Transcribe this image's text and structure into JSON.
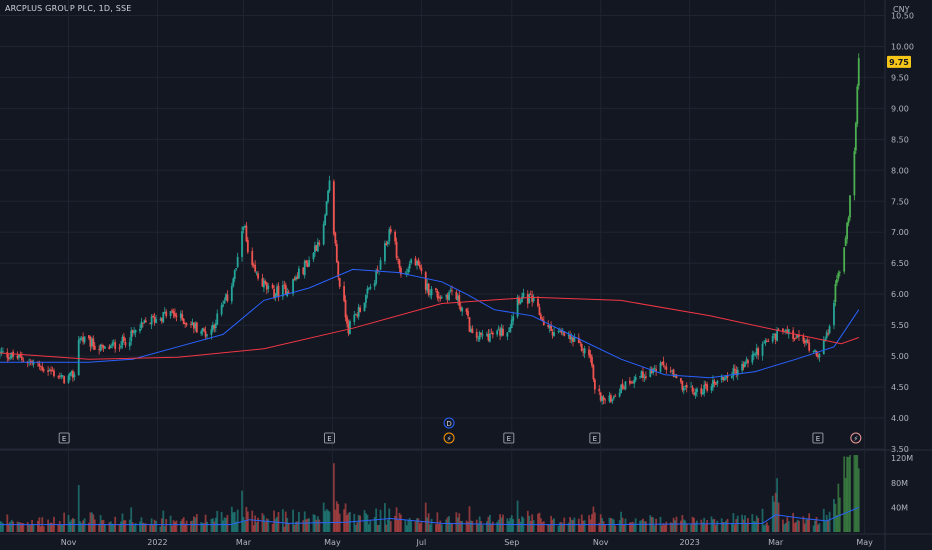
{
  "header": {
    "title": "ARCPLUS GROUP PLC, 1D, SSE"
  },
  "price_axis": {
    "currency": "CNY",
    "last_price": "9.75"
  },
  "colors": {
    "up": "#26a69a",
    "up_bright": "#4caf50",
    "down": "#ef5350",
    "ma_fast": "#2962ff",
    "ma_slow": "#f23645",
    "badge": "#f5c518",
    "grid": "#1f2431",
    "bg": "#131722"
  },
  "events": [
    {
      "type": "earnings",
      "label": "E",
      "date": "2021-10-29"
    },
    {
      "type": "earnings",
      "label": "E",
      "date": "2022-04-29"
    },
    {
      "type": "dividend",
      "label": "D",
      "date": "2022-07-20"
    },
    {
      "type": "split",
      "label": "⚡",
      "date": "2022-07-20"
    },
    {
      "type": "earnings",
      "label": "E",
      "date": "2022-08-30"
    },
    {
      "type": "earnings",
      "label": "E",
      "date": "2022-10-28"
    },
    {
      "type": "earnings",
      "label": "E",
      "date": "2023-03-30"
    },
    {
      "type": "split",
      "label": "⚡",
      "date": "2023-04-25"
    }
  ],
  "chart_data": {
    "type": "candlestick",
    "title": "ARCPLUS GROUP PLC, 1D, SSE",
    "ylabel": "CNY",
    "ylim": [
      3.5,
      10.75
    ],
    "y_ticks": [
      "10.50",
      "10.00",
      "9.50",
      "9.00",
      "8.50",
      "8.00",
      "7.50",
      "7.00",
      "6.50",
      "6.00",
      "5.50",
      "5.00",
      "4.50",
      "4.00",
      "3.50"
    ],
    "x_ticks": [
      {
        "label": "Nov",
        "date": "2021-11-01"
      },
      {
        "label": "2022",
        "date": "2022-01-01"
      },
      {
        "label": "Mar",
        "date": "2022-03-01"
      },
      {
        "label": "May",
        "date": "2022-05-01"
      },
      {
        "label": "Jul",
        "date": "2022-07-01"
      },
      {
        "label": "Sep",
        "date": "2022-09-01"
      },
      {
        "label": "Nov",
        "date": "2022-11-01"
      },
      {
        "label": "2023",
        "date": "2023-01-01"
      },
      {
        "label": "Mar",
        "date": "2023-03-01"
      },
      {
        "label": "May",
        "date": "2023-05-01"
      }
    ],
    "volume_ticks": [
      "120M",
      "80M",
      "40M"
    ],
    "volume_ylim": [
      0,
      130
    ],
    "close_path": [
      [
        "2021-09-15",
        5.05
      ],
      [
        "2021-10-01",
        4.95
      ],
      [
        "2021-10-20",
        4.75
      ],
      [
        "2021-10-29",
        4.62
      ],
      [
        "2021-11-05",
        4.7
      ],
      [
        "2021-11-08",
        5.3
      ],
      [
        "2021-11-25",
        5.1
      ],
      [
        "2021-12-10",
        5.25
      ],
      [
        "2021-12-25",
        5.55
      ],
      [
        "2022-01-10",
        5.7
      ],
      [
        "2022-01-25",
        5.5
      ],
      [
        "2022-02-05",
        5.35
      ],
      [
        "2022-02-18",
        5.95
      ],
      [
        "2022-02-25",
        6.5
      ],
      [
        "2022-03-01",
        7.2
      ],
      [
        "2022-03-05",
        6.45
      ],
      [
        "2022-03-20",
        6.0
      ],
      [
        "2022-04-01",
        6.1
      ],
      [
        "2022-04-15",
        6.55
      ],
      [
        "2022-04-25",
        7.05
      ],
      [
        "2022-04-29",
        7.75
      ],
      [
        "2022-05-05",
        6.3
      ],
      [
        "2022-05-12",
        5.45
      ],
      [
        "2022-05-25",
        6.0
      ],
      [
        "2022-06-03",
        6.45
      ],
      [
        "2022-06-10",
        7.1
      ],
      [
        "2022-06-18",
        6.2
      ],
      [
        "2022-06-25",
        6.6
      ],
      [
        "2022-07-05",
        6.1
      ],
      [
        "2022-07-15",
        5.95
      ],
      [
        "2022-07-22",
        6.05
      ],
      [
        "2022-08-01",
        5.65
      ],
      [
        "2022-08-05",
        5.3
      ],
      [
        "2022-08-20",
        5.35
      ],
      [
        "2022-08-30",
        5.45
      ],
      [
        "2022-09-05",
        5.95
      ],
      [
        "2022-09-15",
        5.9
      ],
      [
        "2022-09-25",
        5.45
      ],
      [
        "2022-10-10",
        5.3
      ],
      [
        "2022-10-25",
        5.0
      ],
      [
        "2022-10-28",
        4.45
      ],
      [
        "2022-11-05",
        4.25
      ],
      [
        "2022-11-20",
        4.6
      ],
      [
        "2022-12-05",
        4.75
      ],
      [
        "2022-12-15",
        4.85
      ],
      [
        "2022-12-25",
        4.55
      ],
      [
        "2023-01-05",
        4.4
      ],
      [
        "2023-01-20",
        4.6
      ],
      [
        "2023-02-05",
        4.8
      ],
      [
        "2023-02-15",
        5.05
      ],
      [
        "2023-02-25",
        5.25
      ],
      [
        "2023-03-05",
        5.4
      ],
      [
        "2023-03-20",
        5.25
      ],
      [
        "2023-03-30",
        5.05
      ],
      [
        "2023-04-05",
        5.3
      ],
      [
        "2023-04-12",
        6.2
      ],
      [
        "2023-04-18",
        6.9
      ],
      [
        "2023-04-22",
        7.8
      ],
      [
        "2023-04-25",
        8.7
      ],
      [
        "2023-04-27",
        9.75
      ]
    ],
    "series": [
      {
        "type": "line",
        "values": [
          [
            "2021-09-15",
            4.9
          ],
          [
            "2021-11-15",
            4.9
          ],
          [
            "2021-12-15",
            4.95
          ],
          [
            "2022-01-15",
            5.15
          ],
          [
            "2022-02-15",
            5.35
          ],
          [
            "2022-03-15",
            5.9
          ],
          [
            "2022-04-15",
            6.1
          ],
          [
            "2022-05-15",
            6.4
          ],
          [
            "2022-06-15",
            6.35
          ],
          [
            "2022-07-15",
            6.2
          ],
          [
            "2022-08-01",
            6.0
          ],
          [
            "2022-08-20",
            5.75
          ],
          [
            "2022-09-15",
            5.65
          ],
          [
            "2022-10-15",
            5.3
          ],
          [
            "2022-11-15",
            4.95
          ],
          [
            "2022-12-15",
            4.7
          ],
          [
            "2023-01-15",
            4.65
          ],
          [
            "2023-02-15",
            4.75
          ],
          [
            "2023-03-15",
            4.95
          ],
          [
            "2023-04-10",
            5.15
          ],
          [
            "2023-04-27",
            5.75
          ]
        ]
      },
      {
        "type": "line",
        "values": [
          [
            "2021-09-15",
            5.05
          ],
          [
            "2021-11-15",
            4.95
          ],
          [
            "2022-01-15",
            4.98
          ],
          [
            "2022-03-15",
            5.12
          ],
          [
            "2022-05-15",
            5.45
          ],
          [
            "2022-07-15",
            5.85
          ],
          [
            "2022-09-15",
            5.95
          ],
          [
            "2022-11-15",
            5.9
          ],
          [
            "2023-01-15",
            5.65
          ],
          [
            "2023-03-15",
            5.35
          ],
          [
            "2023-04-15",
            5.2
          ],
          [
            "2023-04-27",
            5.3
          ]
        ]
      }
    ]
  }
}
